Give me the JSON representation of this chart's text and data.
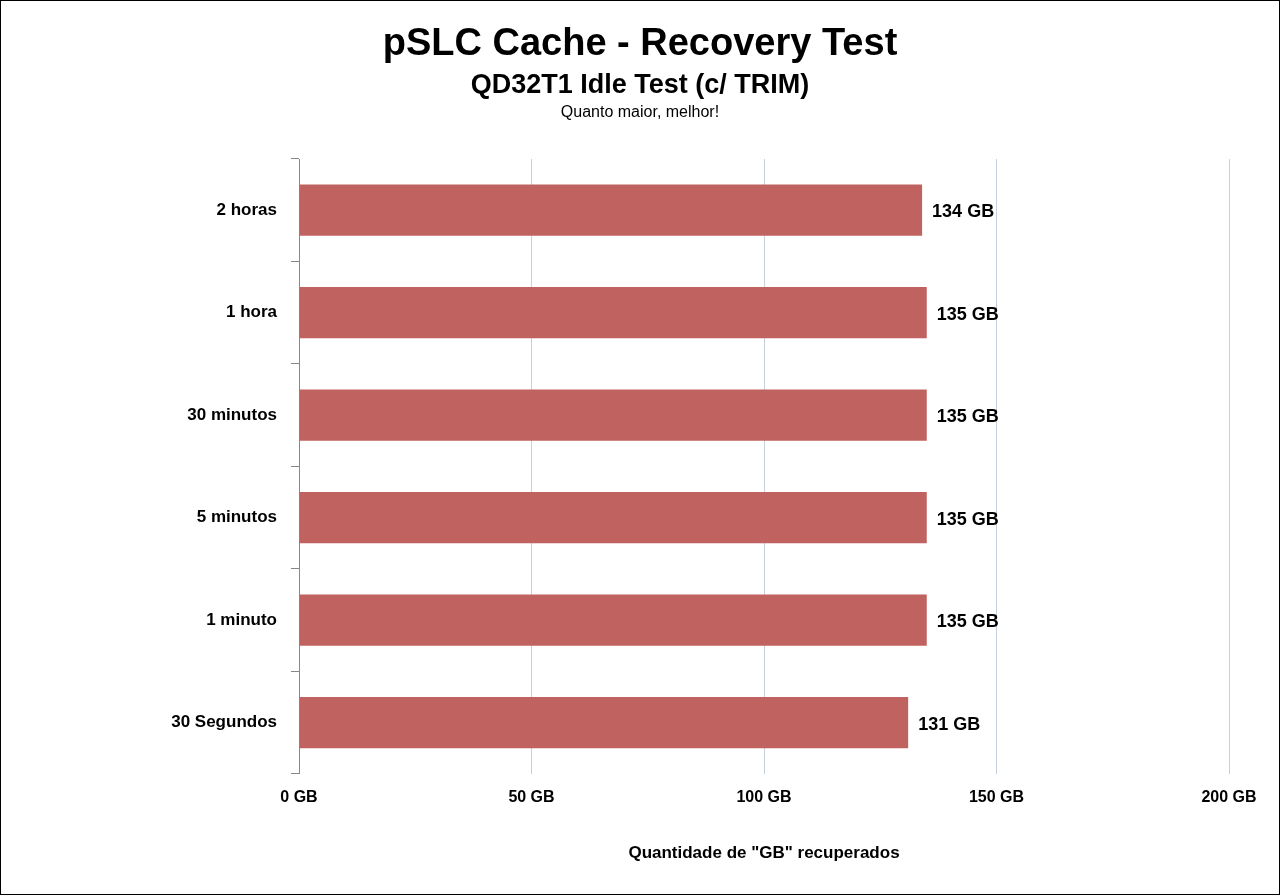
{
  "chart_data": {
    "type": "bar",
    "orientation": "horizontal",
    "title": "pSLC Cache - Recovery Test",
    "subtitle": "QD32T1 Idle Test (c/ TRIM)",
    "annotations": [
      "Quanto maior, melhor!"
    ],
    "xlabel": "Quantidade de \"GB\" recuperados",
    "categories": [
      "2 horas",
      "1 hora",
      "30 minutos",
      "5 minutos",
      "1 minuto",
      "30 Segundos"
    ],
    "values": [
      134,
      135,
      135,
      135,
      135,
      131
    ],
    "value_labels": [
      "134 GB",
      "135 GB",
      "135 GB",
      "135 GB",
      "135 GB",
      "131 GB"
    ],
    "color": "#c0625f",
    "xlim": [
      0,
      200
    ],
    "xticks": [
      {
        "value": 0,
        "label": "0 GB"
      },
      {
        "value": 50,
        "label": "50 GB"
      },
      {
        "value": 100,
        "label": "100 GB"
      },
      {
        "value": 150,
        "label": "150 GB"
      },
      {
        "value": 200,
        "label": "200 GB"
      }
    ],
    "grid": "x"
  }
}
